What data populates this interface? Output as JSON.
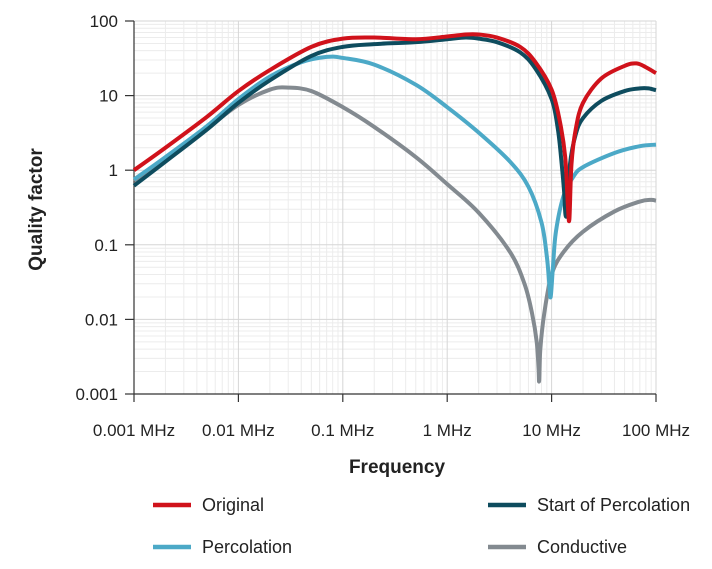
{
  "chart_data": {
    "type": "line",
    "title": "",
    "xlabel": "Frequency",
    "ylabel": "Quality factor",
    "x_scale": "log",
    "y_scale": "log",
    "xlim": [
      0.001,
      100
    ],
    "ylim": [
      0.001,
      100
    ],
    "x_ticks": [
      0.001,
      0.01,
      0.1,
      1,
      10,
      100
    ],
    "x_tick_labels": [
      "0.001 MHz",
      "0.01 MHz",
      "0.1 MHz",
      "1 MHz",
      "10 MHz",
      "100 MHz"
    ],
    "y_ticks": [
      0.001,
      0.01,
      0.1,
      1,
      10,
      100
    ],
    "y_tick_labels": [
      "0.001",
      "0.01",
      "0.1",
      "1",
      "10",
      "100"
    ],
    "grid": true,
    "legend_position": "bottom",
    "series": [
      {
        "name": "Original",
        "color": "#d0121b",
        "points": [
          [
            0.001,
            1.0
          ],
          [
            0.002,
            2.0
          ],
          [
            0.005,
            5.2
          ],
          [
            0.01,
            11.5
          ],
          [
            0.02,
            22
          ],
          [
            0.05,
            45
          ],
          [
            0.1,
            58
          ],
          [
            0.2,
            60
          ],
          [
            0.5,
            57
          ],
          [
            1,
            62
          ],
          [
            1.5,
            66
          ],
          [
            2,
            66
          ],
          [
            3,
            60
          ],
          [
            5,
            45
          ],
          [
            7,
            28
          ],
          [
            10,
            12
          ],
          [
            12,
            4.5
          ],
          [
            13.5,
            1.5
          ],
          [
            14.3,
            0.35
          ],
          [
            14.8,
            0.22
          ],
          [
            15.5,
            1.2
          ],
          [
            17,
            3.5
          ],
          [
            20,
            8
          ],
          [
            30,
            17
          ],
          [
            50,
            25
          ],
          [
            65,
            27
          ],
          [
            80,
            24
          ],
          [
            100,
            20
          ]
        ]
      },
      {
        "name": "Start of Percolation",
        "color": "#0e4c5e",
        "points": [
          [
            0.001,
            0.62
          ],
          [
            0.002,
            1.3
          ],
          [
            0.005,
            3.5
          ],
          [
            0.01,
            8
          ],
          [
            0.02,
            16
          ],
          [
            0.05,
            34
          ],
          [
            0.1,
            45
          ],
          [
            0.2,
            49
          ],
          [
            0.5,
            52
          ],
          [
            1,
            57
          ],
          [
            1.5,
            60
          ],
          [
            2,
            58
          ],
          [
            3,
            52
          ],
          [
            5,
            38
          ],
          [
            7,
            23
          ],
          [
            10,
            9
          ],
          [
            11.5,
            3.5
          ],
          [
            12.5,
            1.2
          ],
          [
            13.2,
            0.5
          ],
          [
            13.6,
            0.25
          ],
          [
            14.2,
            0.3
          ],
          [
            15,
            1.2
          ],
          [
            17,
            3
          ],
          [
            20,
            5
          ],
          [
            30,
            8.5
          ],
          [
            50,
            11.5
          ],
          [
            70,
            12.5
          ],
          [
            85,
            12.5
          ],
          [
            100,
            11.8
          ]
        ]
      },
      {
        "name": "Percolation",
        "color": "#4ca9c7",
        "points": [
          [
            0.001,
            0.75
          ],
          [
            0.002,
            1.5
          ],
          [
            0.005,
            3.9
          ],
          [
            0.01,
            9
          ],
          [
            0.02,
            18
          ],
          [
            0.04,
            28
          ],
          [
            0.07,
            33
          ],
          [
            0.1,
            32
          ],
          [
            0.2,
            26
          ],
          [
            0.5,
            14
          ],
          [
            1,
            7
          ],
          [
            2,
            3.2
          ],
          [
            4,
            1.3
          ],
          [
            6,
            0.6
          ],
          [
            8,
            0.2
          ],
          [
            9,
            0.07
          ],
          [
            9.5,
            0.03
          ],
          [
            9.8,
            0.02
          ],
          [
            10.3,
            0.05
          ],
          [
            11,
            0.15
          ],
          [
            13,
            0.45
          ],
          [
            16,
            0.8
          ],
          [
            20,
            1.1
          ],
          [
            40,
            1.7
          ],
          [
            70,
            2.1
          ],
          [
            100,
            2.2
          ]
        ]
      },
      {
        "name": "Conductive",
        "color": "#838a90",
        "points": [
          [
            0.001,
            0.72
          ],
          [
            0.002,
            1.4
          ],
          [
            0.005,
            3.6
          ],
          [
            0.01,
            7.5
          ],
          [
            0.02,
            12
          ],
          [
            0.03,
            12.8
          ],
          [
            0.05,
            11.5
          ],
          [
            0.1,
            7
          ],
          [
            0.2,
            3.8
          ],
          [
            0.5,
            1.5
          ],
          [
            1,
            0.65
          ],
          [
            2,
            0.27
          ],
          [
            4,
            0.08
          ],
          [
            5.5,
            0.03
          ],
          [
            6.5,
            0.012
          ],
          [
            7.2,
            0.005
          ],
          [
            7.5,
            0.0022
          ],
          [
            7.6,
            0.0015
          ],
          [
            7.8,
            0.004
          ],
          [
            8.5,
            0.012
          ],
          [
            10,
            0.04
          ],
          [
            13,
            0.08
          ],
          [
            20,
            0.15
          ],
          [
            40,
            0.28
          ],
          [
            70,
            0.38
          ],
          [
            90,
            0.4
          ],
          [
            100,
            0.39
          ]
        ]
      }
    ]
  }
}
